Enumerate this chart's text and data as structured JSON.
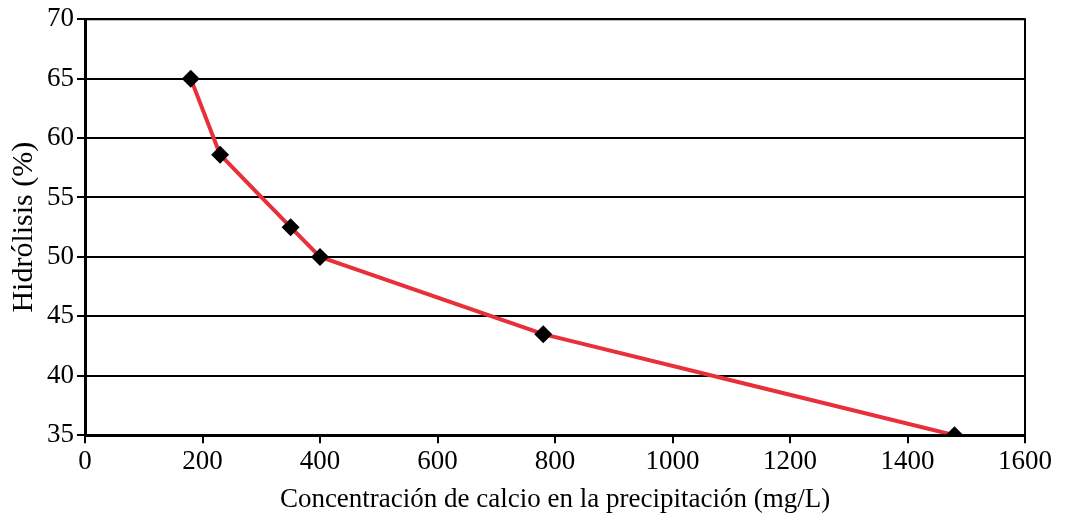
{
  "chart_data": {
    "type": "line",
    "xlabel": "Concentración de calcio en la precipitación (mg/L)",
    "ylabel": "Hidrólisis (%)",
    "x": [
      180,
      230,
      350,
      400,
      780,
      1480
    ],
    "series": [
      {
        "color": "#e8303a",
        "values": [
          65,
          58.6,
          52.5,
          50,
          43.5,
          35
        ]
      }
    ],
    "xlim": [
      0,
      1600
    ],
    "xticks": [
      0,
      200,
      400,
      600,
      800,
      1000,
      1200,
      1400,
      1600
    ],
    "ylim": [
      35,
      70
    ],
    "yticks": [
      35,
      40,
      45,
      50,
      55,
      60,
      65,
      70
    ],
    "grid": "y",
    "legend": false,
    "marker": "diamond",
    "line_style": "solid"
  }
}
